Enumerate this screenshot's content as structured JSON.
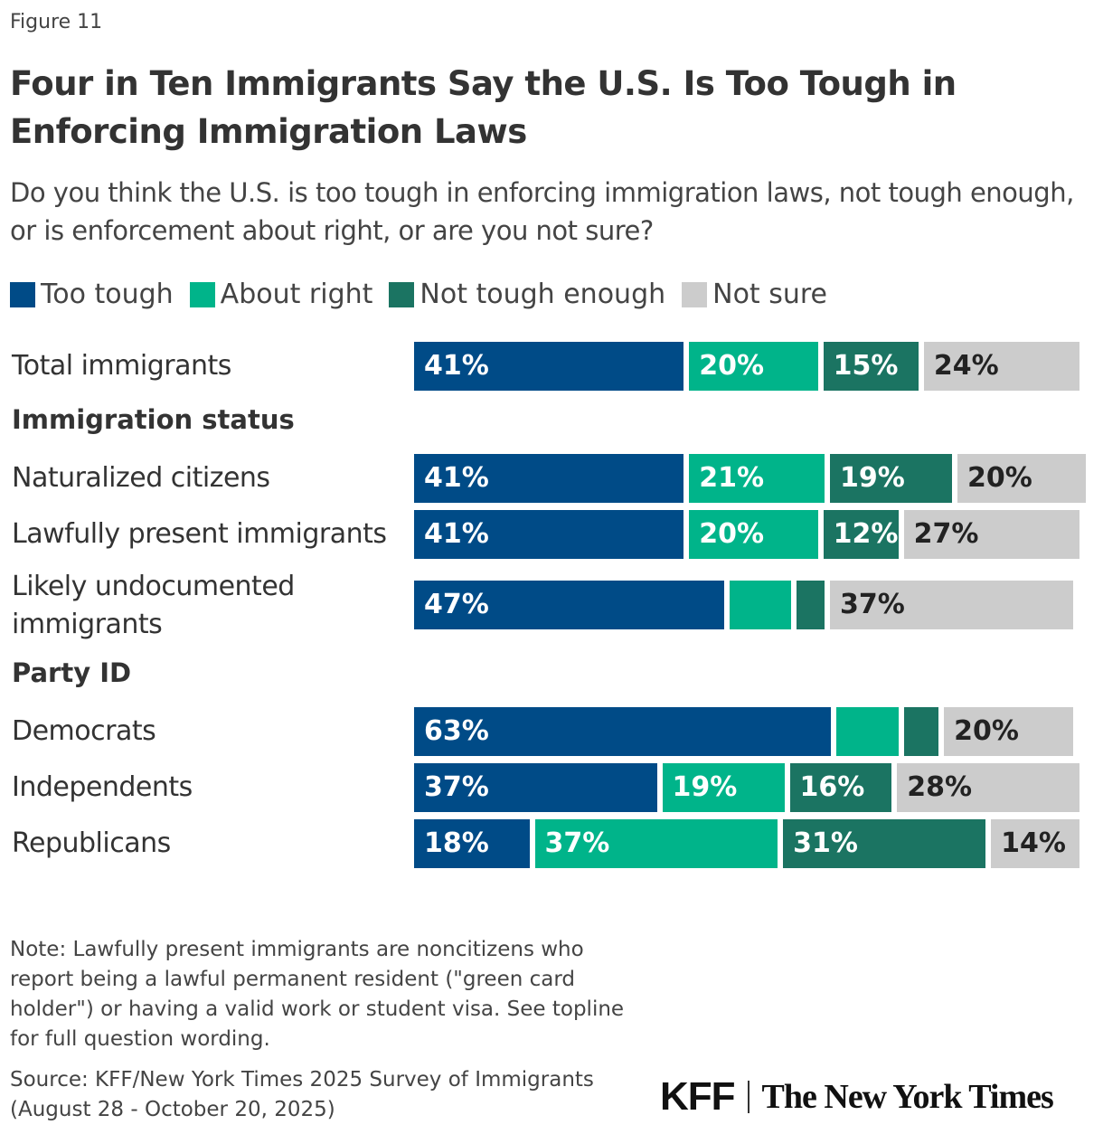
{
  "figure_label": "Figure 11",
  "chart_data": {
    "type": "bar",
    "orientation": "horizontal-stacked-100",
    "title": "Four in Ten Immigrants Say the U.S. Is Too Tough in Enforcing Immigration Laws",
    "subtitle": "Do you think the U.S. is too tough in enforcing immigration laws, not tough enough, or is enforcement about right, or are you not sure?",
    "legend_position": "top-left",
    "series": [
      {
        "name": "Too tough",
        "color": "#004b87"
      },
      {
        "name": "About right",
        "color": "#00b48a"
      },
      {
        "name": "Not tough enough",
        "color": "#1b7462"
      },
      {
        "name": "Not sure",
        "color": "#cccccc"
      }
    ],
    "rows": [
      {
        "label": "Total immigrants",
        "group": null,
        "values": [
          41,
          20,
          15,
          24
        ]
      },
      {
        "label": "Naturalized citizens",
        "group": "Immigration status",
        "values": [
          41,
          21,
          19,
          20
        ]
      },
      {
        "label": "Lawfully present immigrants",
        "group": "Immigration status",
        "values": [
          41,
          20,
          12,
          27
        ]
      },
      {
        "label": "Likely undocumented immigrants",
        "group": "Immigration status",
        "values": [
          47,
          10,
          5,
          37
        ]
      },
      {
        "label": "Democrats",
        "group": "Party ID",
        "values": [
          63,
          10,
          6,
          20
        ]
      },
      {
        "label": "Independents",
        "group": "Party ID",
        "values": [
          37,
          19,
          16,
          28
        ]
      },
      {
        "label": "Republicans",
        "group": "Party ID",
        "values": [
          18,
          37,
          31,
          14
        ]
      }
    ],
    "groups": [
      "Immigration status",
      "Party ID"
    ]
  },
  "note": "Note: Lawfully present immigrants are noncitizens who report being a lawful permanent resident (\"green card holder\") or having a valid work or student visa. See topline for full question wording.",
  "source": "Source: KFF/New York Times 2025 Survey of Immigrants (August 28 - October 20, 2025)",
  "logos": {
    "kff": "KFF",
    "nyt": "The New York Times"
  }
}
